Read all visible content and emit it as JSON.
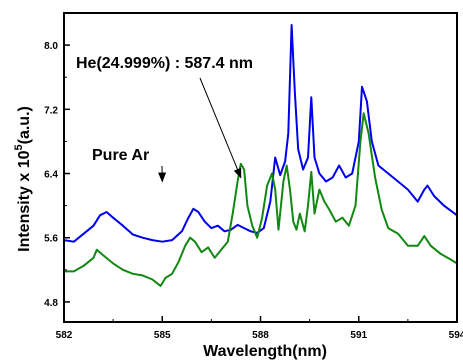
{
  "chart_data": {
    "type": "line",
    "title": "",
    "xlabel": "Wavelength(nm)",
    "ylabel": {
      "prefix": "Intensity x 10",
      "exponent": "5",
      "suffix": "(a.u.)"
    },
    "xlim": [
      582,
      594
    ],
    "ylim": [
      4.55,
      8.4
    ],
    "xticks": [
      582,
      585,
      588,
      591,
      594
    ],
    "xtick_labels": [
      "582",
      "585",
      "588",
      "591",
      "594"
    ],
    "yticks": [
      4.8,
      5.6,
      6.4,
      7.2,
      8.0
    ],
    "ytick_labels": [
      "4.8",
      "5.6",
      "6.4",
      "7.2",
      "8.0"
    ],
    "grid": false,
    "legend": "none",
    "series": [
      {
        "color": "#0000ee",
        "points": [
          [
            582.0,
            5.57
          ],
          [
            582.3,
            5.55
          ],
          [
            582.6,
            5.65
          ],
          [
            582.9,
            5.75
          ],
          [
            583.1,
            5.88
          ],
          [
            583.3,
            5.92
          ],
          [
            583.5,
            5.85
          ],
          [
            583.8,
            5.75
          ],
          [
            584.1,
            5.64
          ],
          [
            584.4,
            5.6
          ],
          [
            584.7,
            5.57
          ],
          [
            585.0,
            5.55
          ],
          [
            585.3,
            5.57
          ],
          [
            585.6,
            5.68
          ],
          [
            585.8,
            5.85
          ],
          [
            585.95,
            5.96
          ],
          [
            586.1,
            5.92
          ],
          [
            586.3,
            5.8
          ],
          [
            586.5,
            5.72
          ],
          [
            586.7,
            5.75
          ],
          [
            586.9,
            5.68
          ],
          [
            587.1,
            5.7
          ],
          [
            587.3,
            5.76
          ],
          [
            587.5,
            5.72
          ],
          [
            587.7,
            5.68
          ],
          [
            587.9,
            5.66
          ],
          [
            588.1,
            5.72
          ],
          [
            588.3,
            6.05
          ],
          [
            588.45,
            6.6
          ],
          [
            588.6,
            6.38
          ],
          [
            588.75,
            6.55
          ],
          [
            588.85,
            6.9
          ],
          [
            588.95,
            8.25
          ],
          [
            589.05,
            7.4
          ],
          [
            589.15,
            6.7
          ],
          [
            589.3,
            6.45
          ],
          [
            589.45,
            6.6
          ],
          [
            589.55,
            7.35
          ],
          [
            589.65,
            6.6
          ],
          [
            589.8,
            6.4
          ],
          [
            590.0,
            6.3
          ],
          [
            590.2,
            6.35
          ],
          [
            590.4,
            6.5
          ],
          [
            590.6,
            6.35
          ],
          [
            590.8,
            6.4
          ],
          [
            591.0,
            6.8
          ],
          [
            591.1,
            7.48
          ],
          [
            591.25,
            7.3
          ],
          [
            591.4,
            6.8
          ],
          [
            591.6,
            6.5
          ],
          [
            591.9,
            6.4
          ],
          [
            592.2,
            6.3
          ],
          [
            592.5,
            6.2
          ],
          [
            592.8,
            6.05
          ],
          [
            593.0,
            6.2
          ],
          [
            593.1,
            6.25
          ],
          [
            593.3,
            6.12
          ],
          [
            593.6,
            6.0
          ],
          [
            594.0,
            5.88
          ]
        ]
      },
      {
        "color": "#118811",
        "points": [
          [
            582.0,
            5.18
          ],
          [
            582.3,
            5.18
          ],
          [
            582.6,
            5.25
          ],
          [
            582.9,
            5.35
          ],
          [
            583.0,
            5.45
          ],
          [
            583.2,
            5.38
          ],
          [
            583.5,
            5.28
          ],
          [
            583.8,
            5.2
          ],
          [
            584.1,
            5.15
          ],
          [
            584.4,
            5.13
          ],
          [
            584.7,
            5.08
          ],
          [
            584.95,
            5.0
          ],
          [
            585.1,
            5.1
          ],
          [
            585.3,
            5.15
          ],
          [
            585.5,
            5.3
          ],
          [
            585.7,
            5.5
          ],
          [
            585.85,
            5.6
          ],
          [
            586.0,
            5.55
          ],
          [
            586.2,
            5.42
          ],
          [
            586.4,
            5.48
          ],
          [
            586.6,
            5.35
          ],
          [
            586.8,
            5.45
          ],
          [
            587.0,
            5.55
          ],
          [
            587.15,
            5.9
          ],
          [
            587.3,
            6.3
          ],
          [
            587.4,
            6.52
          ],
          [
            587.5,
            6.45
          ],
          [
            587.6,
            6.0
          ],
          [
            587.75,
            5.75
          ],
          [
            587.9,
            5.6
          ],
          [
            588.05,
            5.85
          ],
          [
            588.2,
            6.25
          ],
          [
            588.35,
            6.4
          ],
          [
            588.45,
            6.2
          ],
          [
            588.55,
            5.7
          ],
          [
            588.7,
            6.3
          ],
          [
            588.8,
            6.5
          ],
          [
            588.9,
            6.2
          ],
          [
            589.0,
            5.8
          ],
          [
            589.1,
            5.7
          ],
          [
            589.2,
            5.9
          ],
          [
            589.35,
            5.68
          ],
          [
            589.45,
            6.0
          ],
          [
            589.55,
            6.42
          ],
          [
            589.65,
            5.9
          ],
          [
            589.8,
            6.2
          ],
          [
            589.95,
            6.05
          ],
          [
            590.1,
            5.95
          ],
          [
            590.3,
            5.8
          ],
          [
            590.5,
            5.85
          ],
          [
            590.7,
            5.75
          ],
          [
            590.9,
            6.0
          ],
          [
            591.05,
            6.8
          ],
          [
            591.15,
            7.15
          ],
          [
            591.3,
            6.9
          ],
          [
            591.5,
            6.35
          ],
          [
            591.7,
            5.95
          ],
          [
            591.9,
            5.72
          ],
          [
            592.2,
            5.65
          ],
          [
            592.5,
            5.5
          ],
          [
            592.8,
            5.5
          ],
          [
            593.0,
            5.62
          ],
          [
            593.2,
            5.5
          ],
          [
            593.5,
            5.4
          ],
          [
            593.8,
            5.33
          ],
          [
            594.0,
            5.28
          ]
        ]
      }
    ],
    "annotations": [
      {
        "text": "He(24.999%) : 587.4 nm",
        "arrow_to": [
          587.4,
          6.35
        ]
      },
      {
        "text": "Pure Ar",
        "arrow_to": [
          585.0,
          6.3
        ]
      }
    ]
  }
}
